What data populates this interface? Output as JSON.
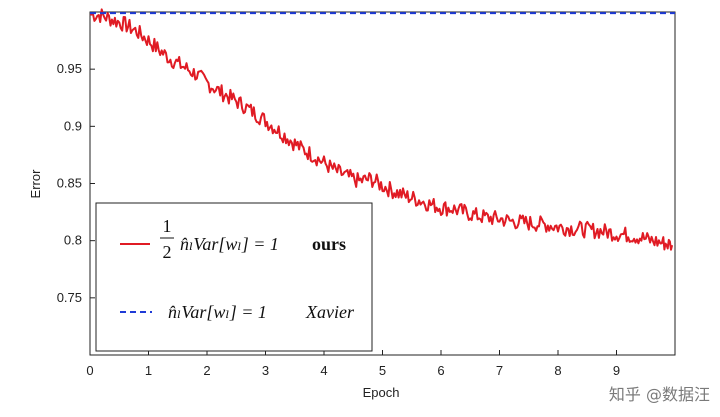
{
  "chart_data": {
    "type": "line",
    "xlabel": "Epoch",
    "ylabel": "Error",
    "xlim": [
      0,
      10
    ],
    "ylim": [
      0.7,
      1.0
    ],
    "xticks": [
      "0",
      "1",
      "2",
      "3",
      "4",
      "5",
      "6",
      "7",
      "8",
      "9"
    ],
    "yticks": [
      "0.75",
      "0.8",
      "0.85",
      "0.9",
      "0.95"
    ],
    "legend_placement": "bottom-left",
    "series": [
      {
        "name": "½ n̂_l Var[w_l] = 1   ours",
        "legend_math": "n̂ₗVar[wₗ] = 1",
        "legend_tag": "ours",
        "color": "#e01b24",
        "style": "solid",
        "x": [
          0,
          0.2,
          0.4,
          0.6,
          0.8,
          1.0,
          1.2,
          1.4,
          1.6,
          1.8,
          2.0,
          2.2,
          2.4,
          2.6,
          2.8,
          3.0,
          3.2,
          3.4,
          3.6,
          3.8,
          4.0,
          4.2,
          4.4,
          4.6,
          4.8,
          5.0,
          5.2,
          5.4,
          5.6,
          5.8,
          6.0,
          6.2,
          6.4,
          6.6,
          6.8,
          7.0,
          7.2,
          7.4,
          7.6,
          7.8,
          8.0,
          8.2,
          8.4,
          8.6,
          8.8,
          9.0,
          9.2,
          9.4,
          9.6,
          9.8,
          9.95
        ],
        "y": [
          0.998,
          0.997,
          0.993,
          0.989,
          0.983,
          0.975,
          0.966,
          0.958,
          0.952,
          0.946,
          0.938,
          0.931,
          0.925,
          0.919,
          0.912,
          0.905,
          0.897,
          0.889,
          0.881,
          0.875,
          0.868,
          0.861,
          0.856,
          0.852,
          0.854,
          0.848,
          0.843,
          0.839,
          0.836,
          0.832,
          0.829,
          0.828,
          0.825,
          0.822,
          0.82,
          0.819,
          0.817,
          0.816,
          0.815,
          0.814,
          0.812,
          0.811,
          0.81,
          0.809,
          0.808,
          0.806,
          0.805,
          0.803,
          0.8,
          0.798,
          0.796
        ]
      },
      {
        "name": "n̂_l Var[w_l] = 1   Xavier",
        "legend_math": "n̂ₗVar[wₗ] = 1",
        "legend_tag": "Xavier",
        "color": "#1f3bd6",
        "style": "dashed",
        "x": [
          0,
          10
        ],
        "y": [
          0.999,
          0.999
        ]
      }
    ]
  },
  "watermark": "知乎 @数据汪"
}
